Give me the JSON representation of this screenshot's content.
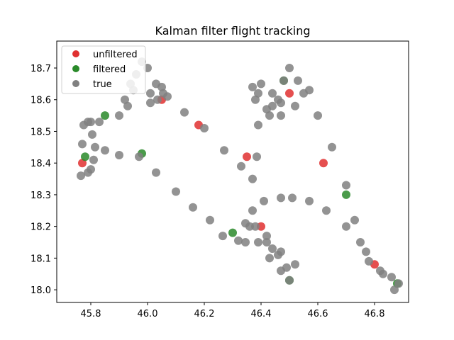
{
  "chart_data": {
    "type": "scatter",
    "title": "Kalman filter flight tracking",
    "xlabel": "",
    "ylabel": "",
    "xlim": [
      45.68,
      46.92
    ],
    "ylim": [
      17.96,
      18.785
    ],
    "x_ticks": [
      45.8,
      46.0,
      46.2,
      46.4,
      46.6,
      46.8
    ],
    "x_tick_labels": [
      "45.8",
      "46.0",
      "46.2",
      "46.4",
      "46.6",
      "46.8"
    ],
    "y_ticks": [
      18.0,
      18.1,
      18.2,
      18.3,
      18.4,
      18.5,
      18.6,
      18.7
    ],
    "y_tick_labels": [
      "18.0",
      "18.1",
      "18.2",
      "18.3",
      "18.4",
      "18.5",
      "18.6",
      "18.7"
    ],
    "grid": false,
    "legend_position": "top-left",
    "series": [
      {
        "name": "unfiltered",
        "color": "#e03030",
        "points": [
          [
            45.77,
            18.4
          ],
          [
            46.05,
            18.6
          ],
          [
            46.18,
            18.52
          ],
          [
            46.35,
            18.42
          ],
          [
            46.5,
            18.62
          ],
          [
            46.62,
            18.4
          ],
          [
            46.4,
            18.2
          ],
          [
            46.8,
            18.08
          ]
        ]
      },
      {
        "name": "filtered",
        "color": "#2a8a2a",
        "points": [
          [
            45.78,
            18.42
          ],
          [
            45.85,
            18.55
          ],
          [
            45.98,
            18.43
          ],
          [
            46.48,
            18.66
          ],
          [
            46.7,
            18.3
          ],
          [
            46.5,
            18.03
          ],
          [
            46.3,
            18.18
          ],
          [
            46.88,
            18.02
          ]
        ]
      },
      {
        "name": "true",
        "color": "#808080",
        "points": [
          [
            45.765,
            18.36
          ],
          [
            45.77,
            18.46
          ],
          [
            45.775,
            18.52
          ],
          [
            45.79,
            18.53
          ],
          [
            45.8,
            18.53
          ],
          [
            45.83,
            18.53
          ],
          [
            45.85,
            18.44
          ],
          [
            45.9,
            18.425
          ],
          [
            45.97,
            18.42
          ],
          [
            46.03,
            18.37
          ],
          [
            46.1,
            18.31
          ],
          [
            46.16,
            18.26
          ],
          [
            46.22,
            18.22
          ],
          [
            46.265,
            18.17
          ],
          [
            46.32,
            18.155
          ],
          [
            46.345,
            18.15
          ],
          [
            46.345,
            18.21
          ],
          [
            46.38,
            18.2
          ],
          [
            46.42,
            18.17
          ],
          [
            46.47,
            18.12
          ],
          [
            46.52,
            18.08
          ],
          [
            46.5,
            18.03
          ],
          [
            46.47,
            18.06
          ],
          [
            46.43,
            18.1
          ],
          [
            46.39,
            18.15
          ],
          [
            46.36,
            18.2
          ],
          [
            46.37,
            18.25
          ],
          [
            46.41,
            18.28
          ],
          [
            46.47,
            18.29
          ],
          [
            46.51,
            18.29
          ],
          [
            46.57,
            18.28
          ],
          [
            46.63,
            18.25
          ],
          [
            46.7,
            18.2
          ],
          [
            46.75,
            18.15
          ],
          [
            46.78,
            18.09
          ],
          [
            46.82,
            18.06
          ],
          [
            46.86,
            18.04
          ],
          [
            46.885,
            18.02
          ],
          [
            46.87,
            18.0
          ],
          [
            46.83,
            18.05
          ],
          [
            46.77,
            18.12
          ],
          [
            46.73,
            18.22
          ],
          [
            46.7,
            18.33
          ],
          [
            46.65,
            18.45
          ],
          [
            46.6,
            18.55
          ],
          [
            46.57,
            18.63
          ],
          [
            46.53,
            18.66
          ],
          [
            46.5,
            18.7
          ],
          [
            46.48,
            18.66
          ],
          [
            46.44,
            18.62
          ],
          [
            46.4,
            18.65
          ],
          [
            46.37,
            18.64
          ],
          [
            46.38,
            18.6
          ],
          [
            46.42,
            18.57
          ],
          [
            46.47,
            18.55
          ],
          [
            46.44,
            18.58
          ],
          [
            46.39,
            18.62
          ],
          [
            46.39,
            18.52
          ],
          [
            46.385,
            18.42
          ],
          [
            46.37,
            18.35
          ],
          [
            46.33,
            18.39
          ],
          [
            46.27,
            18.44
          ],
          [
            46.2,
            18.51
          ],
          [
            46.13,
            18.56
          ],
          [
            46.07,
            18.61
          ],
          [
            46.05,
            18.64
          ],
          [
            46.055,
            18.62
          ],
          [
            46.035,
            18.6
          ],
          [
            46.01,
            18.59
          ],
          [
            46.01,
            18.62
          ],
          [
            46.03,
            18.65
          ],
          [
            46.0,
            18.7
          ],
          [
            45.98,
            18.72
          ],
          [
            45.96,
            18.68
          ],
          [
            45.94,
            18.65
          ],
          [
            45.92,
            18.6
          ],
          [
            45.9,
            18.55
          ],
          [
            45.93,
            18.58
          ],
          [
            45.95,
            18.63
          ],
          [
            45.81,
            18.41
          ],
          [
            45.8,
            18.38
          ],
          [
            45.79,
            18.37
          ],
          [
            45.815,
            18.45
          ],
          [
            45.805,
            18.49
          ],
          [
            46.42,
            18.15
          ],
          [
            46.46,
            18.11
          ],
          [
            46.44,
            18.13
          ],
          [
            46.49,
            18.07
          ],
          [
            46.55,
            18.62
          ],
          [
            46.52,
            18.58
          ],
          [
            46.46,
            18.6
          ],
          [
            46.43,
            18.55
          ],
          [
            46.47,
            18.59
          ]
        ]
      }
    ]
  }
}
